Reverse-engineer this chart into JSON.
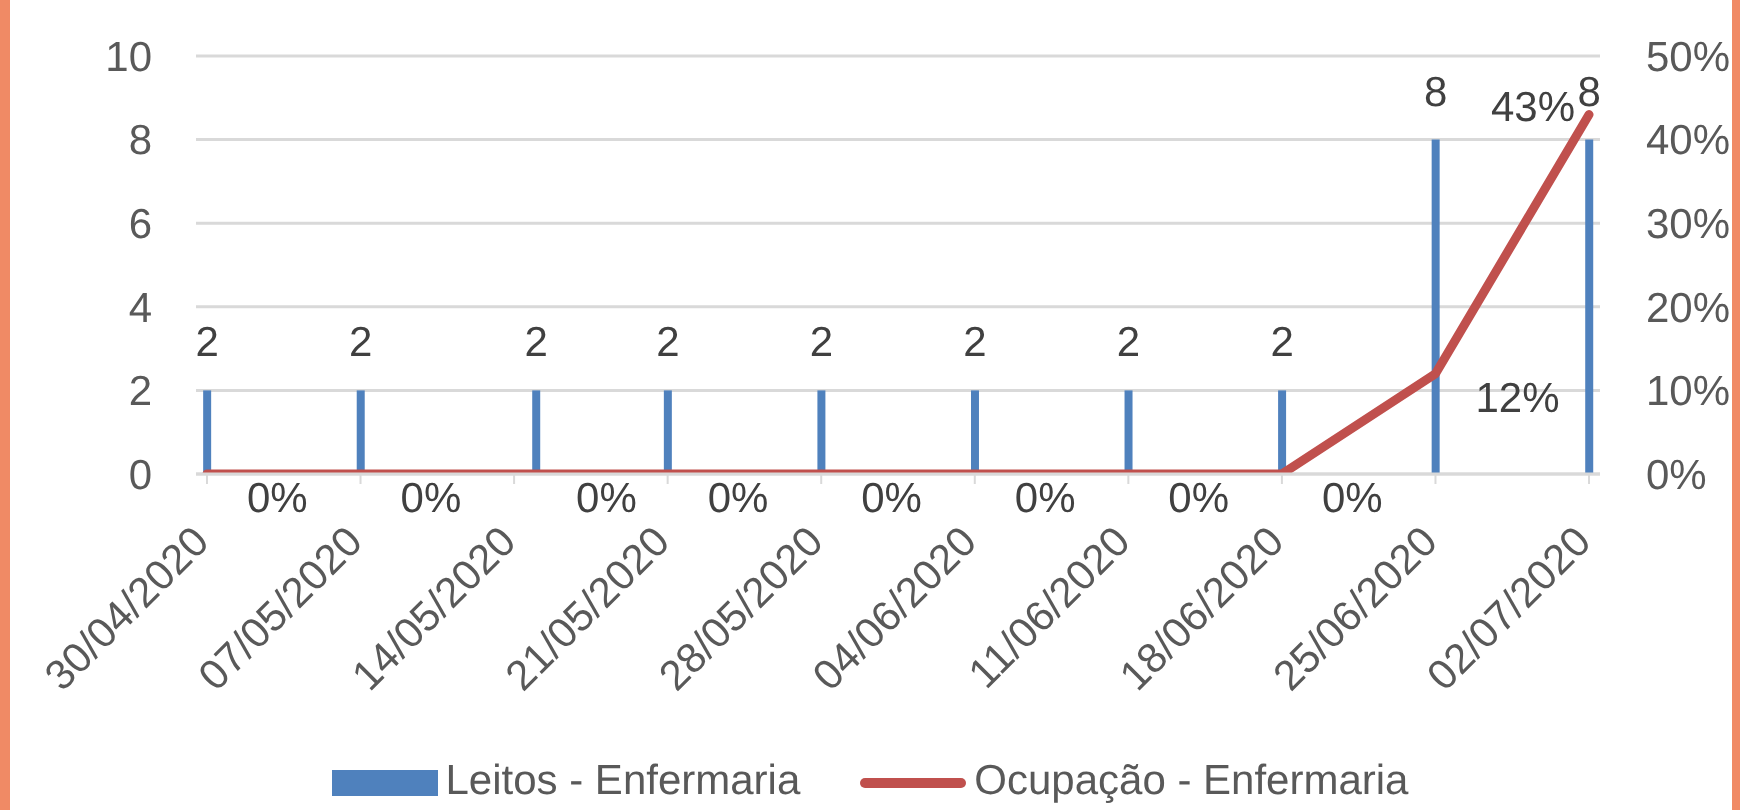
{
  "chart_data": {
    "type": "bar",
    "x": [
      "2020-04-30",
      "2020-05-07",
      "2020-05-15",
      "2020-05-21",
      "2020-05-28",
      "2020-06-04",
      "2020-06-11",
      "2020-06-18",
      "2020-06-25",
      "2020-07-02"
    ],
    "xlim": [
      "2020-04-29T12:00",
      "2020-07-02T12:00"
    ],
    "xticks": [
      {
        "value": "2020-04-30",
        "label": "30/04/2020"
      },
      {
        "value": "2020-05-07",
        "label": "07/05/2020"
      },
      {
        "value": "2020-05-14",
        "label": "14/05/2020"
      },
      {
        "value": "2020-05-21",
        "label": "21/05/2020"
      },
      {
        "value": "2020-05-28",
        "label": "28/05/2020"
      },
      {
        "value": "2020-06-04",
        "label": "04/06/2020"
      },
      {
        "value": "2020-06-11",
        "label": "11/06/2020"
      },
      {
        "value": "2020-06-18",
        "label": "18/06/2020"
      },
      {
        "value": "2020-06-25",
        "label": "25/06/2020"
      },
      {
        "value": "2020-07-02",
        "label": "02/07/2020"
      }
    ],
    "ylim": [
      0,
      10
    ],
    "yticks": [
      0,
      2,
      4,
      6,
      8,
      10
    ],
    "y2lim": [
      0,
      50
    ],
    "y2ticks": [
      {
        "value": 0,
        "label": "0%"
      },
      {
        "value": 10,
        "label": "10%"
      },
      {
        "value": 20,
        "label": "20%"
      },
      {
        "value": 30,
        "label": "30%"
      },
      {
        "value": 40,
        "label": "40%"
      },
      {
        "value": 50,
        "label": "50%"
      }
    ],
    "series": [
      {
        "name": "Leitos - Enfermaria",
        "color": "#4f81bd",
        "values": [
          2,
          2,
          2,
          2,
          2,
          2,
          2,
          2,
          8,
          8
        ],
        "value_labels": [
          "2",
          "2",
          "2",
          "2",
          "2",
          "2",
          "2",
          "2",
          "8",
          "8"
        ]
      },
      {
        "name": "Ocupação - Enfermaria",
        "type": "line",
        "axis": "y2",
        "color": "#c0504d",
        "values": [
          0,
          0,
          0,
          0,
          0,
          0,
          0,
          0,
          12,
          43
        ],
        "value_labels": [
          "0%",
          "0%",
          "0%",
          "0%",
          "0%",
          "0%",
          "0%",
          "0%",
          "12%",
          "43%"
        ]
      }
    ],
    "grid": "y",
    "legend": "bottom"
  }
}
